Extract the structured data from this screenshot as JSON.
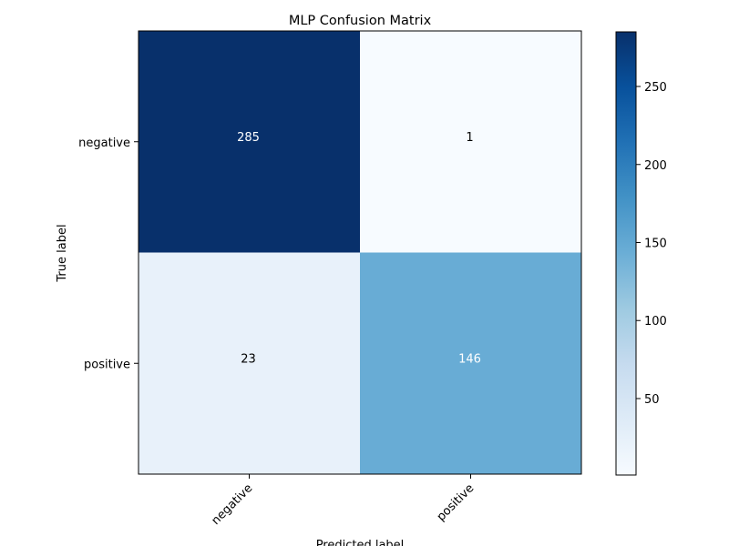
{
  "chart_data": {
    "type": "heatmap",
    "title": "MLP Confusion Matrix",
    "xlabel": "Predicted label",
    "ylabel": "True label",
    "x_categories": [
      "negative",
      "positive"
    ],
    "y_categories": [
      "negative",
      "positive"
    ],
    "matrix": [
      [
        285,
        1
      ],
      [
        23,
        146
      ]
    ],
    "colormap": "Blues",
    "color_range": [
      1,
      285
    ],
    "colorbar_ticks": [
      50,
      100,
      150,
      200,
      250
    ],
    "grid": false,
    "value_text_colors": {
      "dark": "#ffffff",
      "light": "#000000"
    }
  }
}
